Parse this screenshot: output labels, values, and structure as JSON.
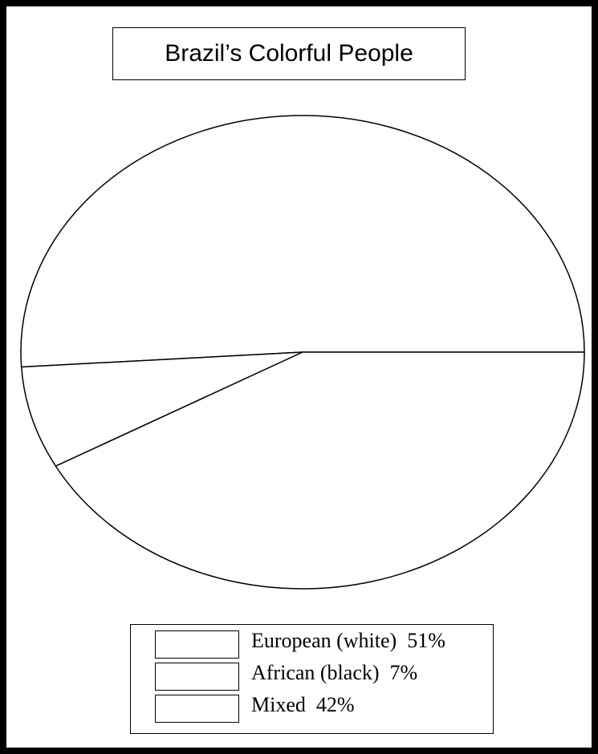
{
  "chart_data": {
    "type": "pie",
    "title": "Brazil’s Colorful People",
    "slices": [
      {
        "label": "European (white)",
        "value": 51,
        "display": "51%"
      },
      {
        "label": "African (black)",
        "value": 7,
        "display": "7%"
      },
      {
        "label": "Mixed",
        "value": 42,
        "display": "42%"
      }
    ],
    "legend_position": "bottom",
    "colors": {
      "fill": "#ffffff",
      "stroke": "#000000"
    }
  }
}
